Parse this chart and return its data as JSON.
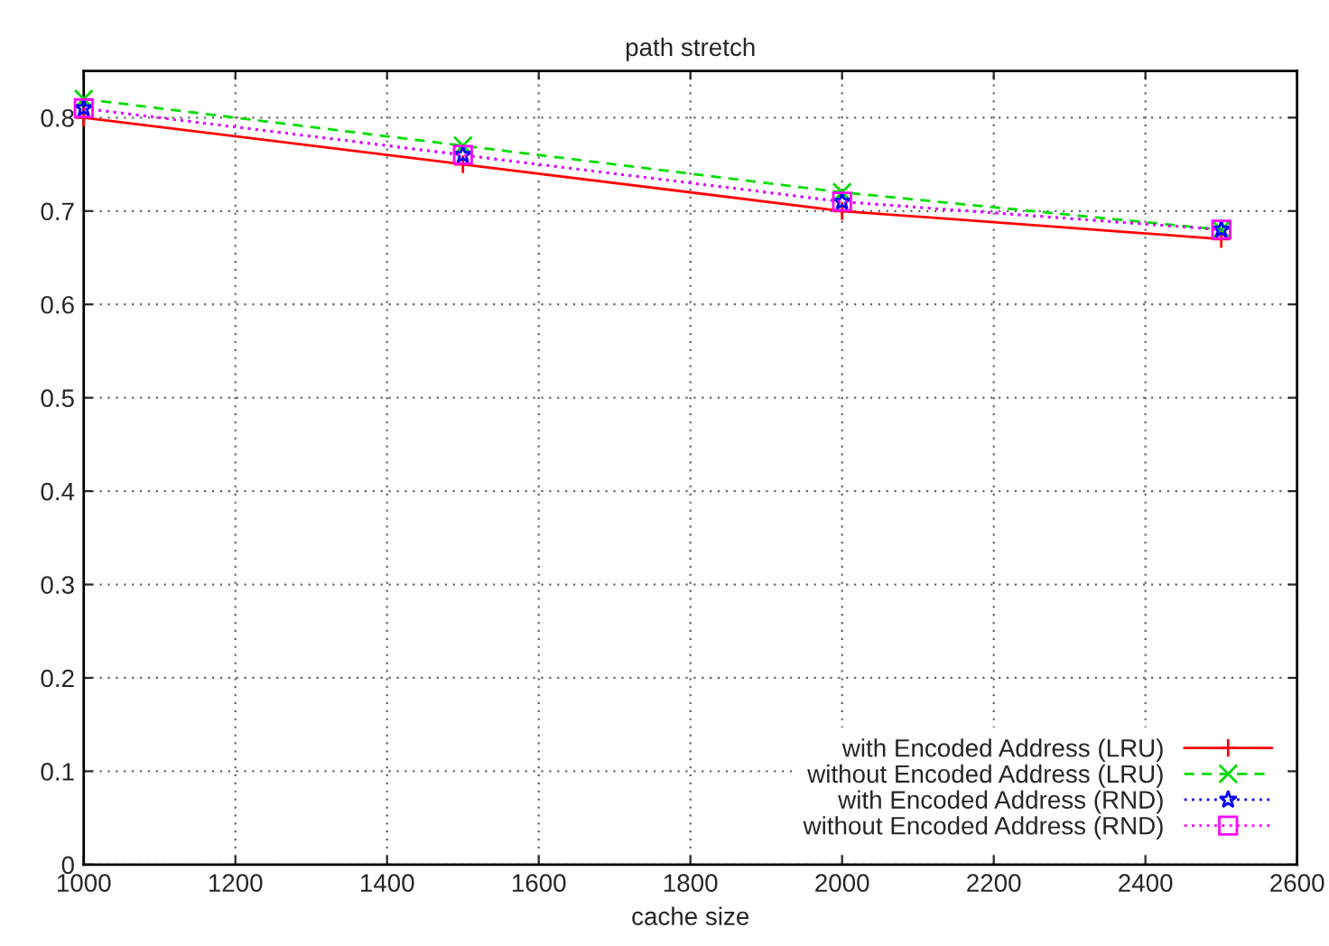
{
  "chart_data": {
    "type": "line",
    "title": "path stretch",
    "xlabel": "cache size",
    "x": [
      1000,
      1500,
      2000,
      2500
    ],
    "series": [
      {
        "name": "with Encoded Address (LRU)",
        "color": "#ff0000",
        "marker": "plus",
        "line_style": "solid",
        "values": [
          0.8,
          0.75,
          0.7,
          0.67
        ]
      },
      {
        "name": "without Encoded Address (LRU)",
        "color": "#00dd00",
        "marker": "cross",
        "line_style": "dashed",
        "values": [
          0.82,
          0.77,
          0.72,
          0.68
        ]
      },
      {
        "name": "with Encoded Address (RND)",
        "color": "#0000ff",
        "marker": "star",
        "line_style": "dotted",
        "values": [
          0.81,
          0.76,
          0.71,
          0.68
        ]
      },
      {
        "name": "without Encoded Address (RND)",
        "color": "#ff00ff",
        "marker": "square",
        "line_style": "dotted",
        "values": [
          0.81,
          0.76,
          0.71,
          0.68
        ]
      }
    ],
    "xlim": [
      1000,
      2600
    ],
    "xticks": [
      1000,
      1200,
      1400,
      1600,
      1800,
      2000,
      2200,
      2400,
      2600
    ],
    "ylim": [
      0,
      0.85
    ],
    "yticks": [
      0,
      0.1,
      0.2,
      0.3,
      0.4,
      0.5,
      0.6,
      0.7,
      0.8
    ],
    "grid": true,
    "legend": "bottom right"
  }
}
